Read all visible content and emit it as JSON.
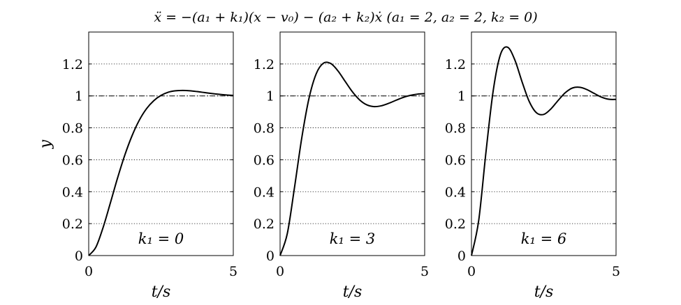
{
  "figure": {
    "title": "ẍ = −(a₁ + k₁)(x − v₀) − (a₂ + k₂)ẋ    (a₁ = 2, a₂ = 2, k₂ = 0)",
    "ylabel": "y",
    "xlabel": "t/s"
  },
  "chart_data": [
    {
      "type": "line",
      "annotation": "k₁ = 0",
      "xlim": [
        0,
        5
      ],
      "ylim": [
        0,
        1.4
      ],
      "xticks": [
        "0",
        "5"
      ],
      "yticks": [
        "0",
        "0.2",
        "0.4",
        "0.6",
        "0.8",
        "1",
        "1.2"
      ],
      "grid": "horizontal-dotted",
      "reference_line": 1,
      "series": [
        {
          "x": [
            0,
            0.25,
            0.5,
            0.75,
            1.0,
            1.25,
            1.5,
            1.75,
            2.0,
            2.25,
            2.5,
            2.75,
            3.0,
            3.25,
            3.5,
            3.75,
            4.0,
            4.25,
            4.5,
            4.75,
            5.0
          ],
          "y": [
            0,
            0.053,
            0.177,
            0.33,
            0.487,
            0.63,
            0.751,
            0.848,
            0.92,
            0.97,
            1.003,
            1.023,
            1.032,
            1.034,
            1.032,
            1.027,
            1.021,
            1.015,
            1.01,
            1.006,
            1.003
          ]
        }
      ]
    },
    {
      "type": "line",
      "annotation": "k₁ = 3",
      "xlim": [
        0,
        5
      ],
      "ylim": [
        0,
        1.4
      ],
      "xticks": [
        "0",
        "5"
      ],
      "yticks": [
        "0",
        "0.2",
        "0.4",
        "0.6",
        "0.8",
        "1",
        "1.2"
      ],
      "grid": "horizontal-dotted",
      "reference_line": 1,
      "series": [
        {
          "x": [
            0,
            0.25,
            0.5,
            0.75,
            1.0,
            1.25,
            1.5,
            1.75,
            2.0,
            2.25,
            2.5,
            2.75,
            3.0,
            3.25,
            3.5,
            3.75,
            4.0,
            4.25,
            4.5,
            4.75,
            5.0
          ],
          "y": [
            0,
            0.138,
            0.428,
            0.737,
            0.985,
            1.139,
            1.205,
            1.203,
            1.157,
            1.091,
            1.026,
            0.975,
            0.944,
            0.933,
            0.938,
            0.953,
            0.972,
            0.99,
            1.003,
            1.011,
            1.014
          ]
        }
      ]
    },
    {
      "type": "line",
      "annotation": "k₁ = 6",
      "xlim": [
        0,
        5
      ],
      "ylim": [
        0,
        1.4
      ],
      "xticks": [
        "0",
        "5"
      ],
      "yticks": [
        "0",
        "0.2",
        "0.4",
        "0.6",
        "0.8",
        "1",
        "1.2"
      ],
      "grid": "horizontal-dotted",
      "reference_line": 1,
      "series": [
        {
          "x": [
            0,
            0.25,
            0.5,
            0.75,
            1.0,
            1.25,
            1.5,
            1.75,
            2.0,
            2.25,
            2.5,
            2.75,
            3.0,
            3.25,
            3.5,
            3.75,
            4.0,
            4.25,
            4.5,
            4.75,
            5.0
          ],
          "y": [
            0,
            0.219,
            0.645,
            1.03,
            1.258,
            1.305,
            1.225,
            1.088,
            0.964,
            0.894,
            0.884,
            0.919,
            0.972,
            1.021,
            1.05,
            1.054,
            1.039,
            1.015,
            0.992,
            0.979,
            0.978
          ]
        }
      ]
    }
  ]
}
